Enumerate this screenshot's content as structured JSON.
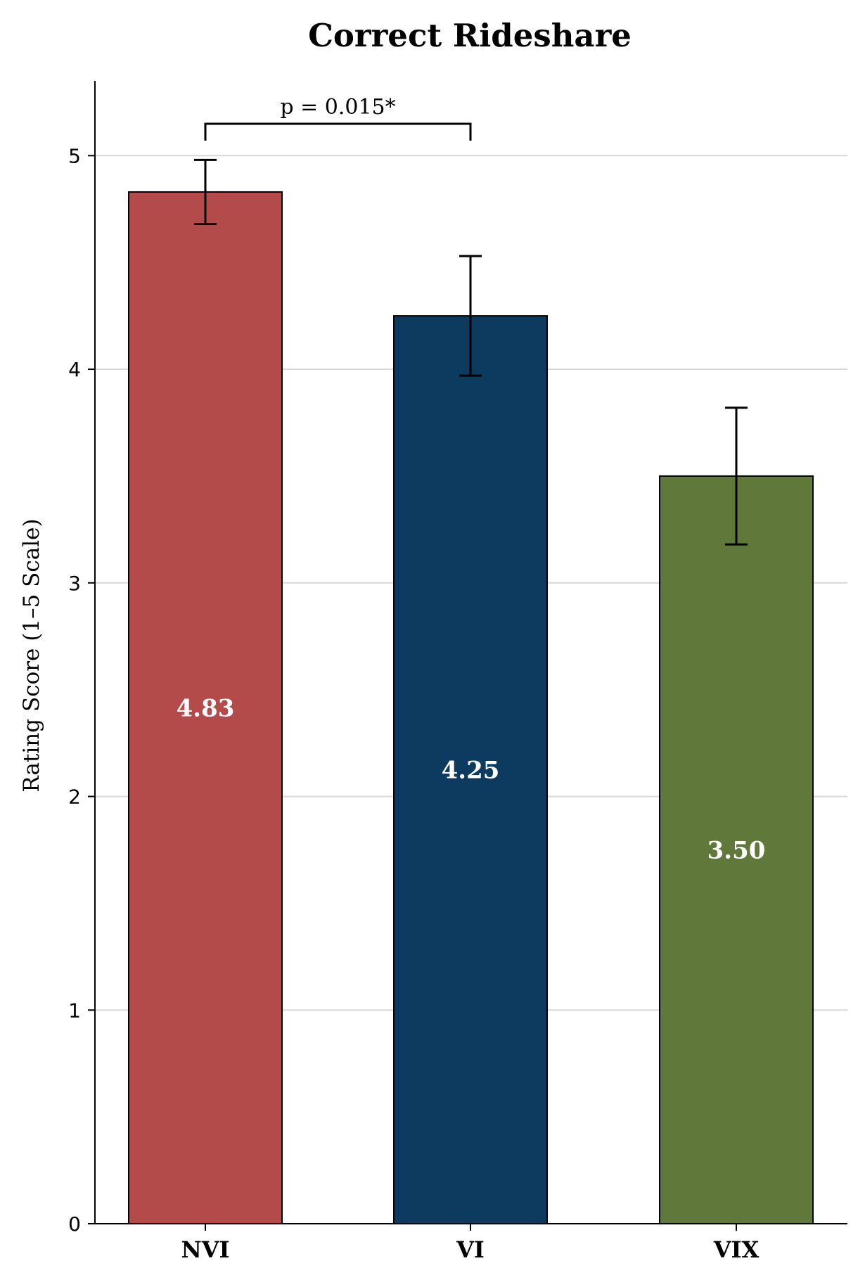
{
  "chart_data": {
    "type": "bar",
    "title": "Correct Rideshare",
    "xlabel": "",
    "ylabel": "Rating Score (1–5 Scale)",
    "ylim": [
      0,
      5.35
    ],
    "yticks": [
      0,
      1,
      2,
      3,
      4,
      5
    ],
    "grid": "y-major",
    "categories": [
      "NVI",
      "VI",
      "VIX"
    ],
    "values": [
      4.83,
      4.25,
      3.5
    ],
    "value_labels": [
      "4.83",
      "4.25",
      "3.50"
    ],
    "error_bars": [
      {
        "low": 4.68,
        "high": 4.98
      },
      {
        "low": 3.97,
        "high": 4.53
      },
      {
        "low": 3.18,
        "high": 3.82
      }
    ],
    "colors": [
      "#b34b4b",
      "#0d3a5f",
      "#60783a"
    ],
    "annotation": {
      "text": "p = 0.015*",
      "from_category": 0,
      "to_category": 1
    }
  }
}
